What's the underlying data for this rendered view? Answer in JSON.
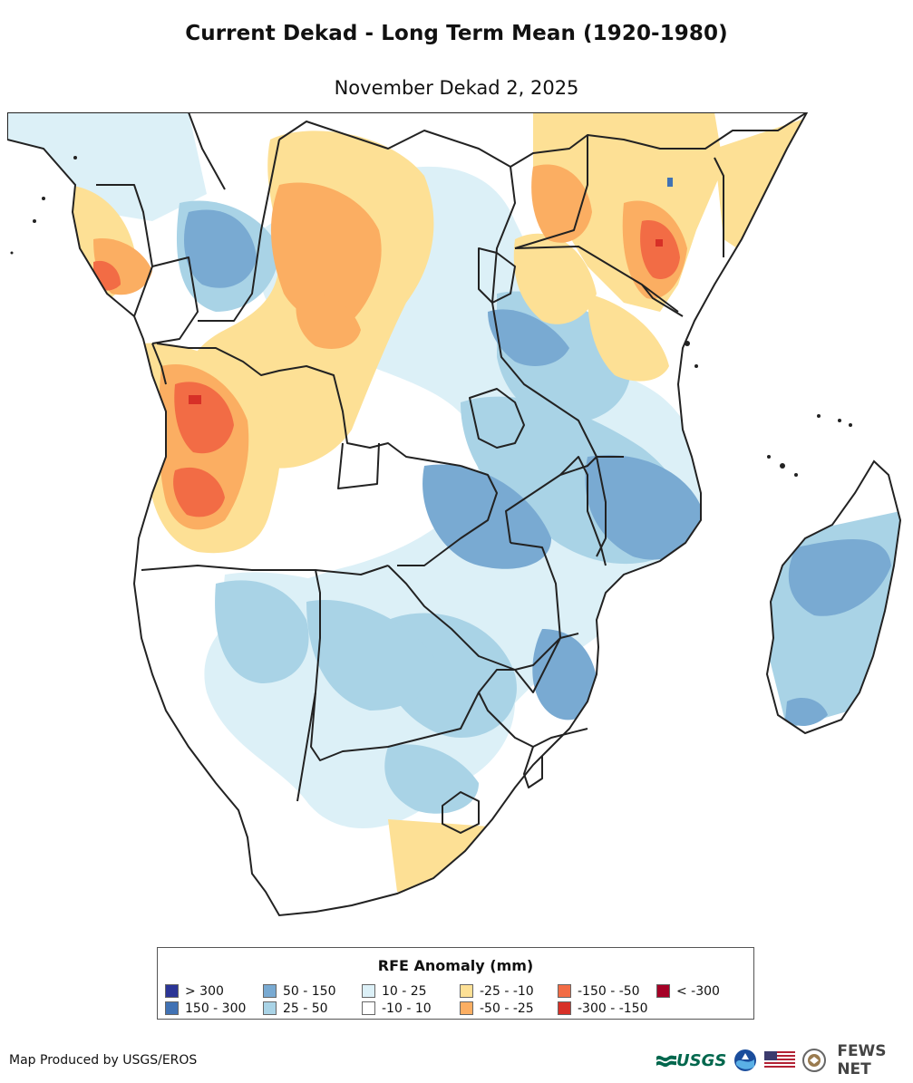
{
  "map": {
    "title": "Current Dekad - Long Term Mean (1920-1980)",
    "subtitle": "November Dekad 2, 2025",
    "region": "Southern and East Africa",
    "variable": "Rainfall (RFE) anomaly"
  },
  "legend": {
    "title": "RFE Anomaly (mm)",
    "items": [
      {
        "label": "> 300",
        "color": "#2b3596"
      },
      {
        "label": "150 - 300",
        "color": "#4172b4"
      },
      {
        "label": "50 - 150",
        "color": "#79aad2"
      },
      {
        "label": "25 - 50",
        "color": "#a9d3e6"
      },
      {
        "label": "10 - 25",
        "color": "#dcf0f7"
      },
      {
        "label": "-10 - 10",
        "color": "#ffffff"
      },
      {
        "label": "-25 - -10",
        "color": "#fde095"
      },
      {
        "label": "-50 - -25",
        "color": "#fbae62"
      },
      {
        "label": "-150 - -50",
        "color": "#f26c45"
      },
      {
        "label": "-300 - -150",
        "color": "#d73027"
      },
      {
        "label": "< -300",
        "color": "#a50026"
      }
    ]
  },
  "footer": {
    "credit": "Map Produced by USGS/EROS",
    "logos": [
      {
        "name": "usgs-logo",
        "text": "USGS"
      },
      {
        "name": "noaa-logo-icon"
      },
      {
        "name": "us-flag-icon"
      },
      {
        "name": "state-department-seal-icon"
      },
      {
        "name": "fews-net-logo",
        "text": "FEWS NET"
      }
    ]
  }
}
